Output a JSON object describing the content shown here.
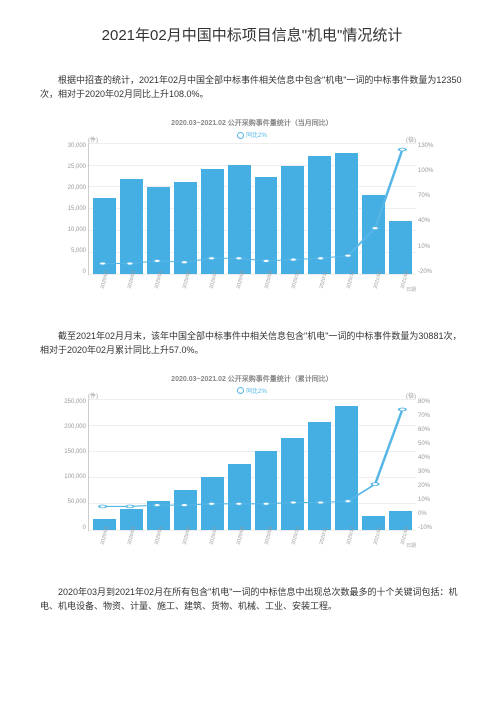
{
  "title": "2021年02月中国中标项目信息\"机电\"情况统计",
  "para1": "根据中招查的统计，2021年02月中国全部中标事件相关信息中包含\"机电\"一词的中标事件数量为12350次，相对于2020年02月同比上升108.0%。",
  "para2": "截至2021年02月月末，该年中国全部中标事件中相关信息包含\"机电\"一词的中标事件数量为30881次，相对于2020年02月累计同比上升57.0%。",
  "para3": "2020年03月到2021年02月在所有包含\"机电\"一词的中标信息中出现总次数最多的十个关键词包括：机电、机电设备、物资、计量、施工、建筑、货物、机械、工业、安装工程。",
  "chart1": {
    "title": "2020.03~2021.02 公开采购事件量统计（当月同比）",
    "legend": "同比2%",
    "y_left_unit": "(件)",
    "y_right_unit": "(倍)",
    "y_left": [
      "30,000",
      "25,000",
      "20,000",
      "15,000",
      "10,000",
      "5,000",
      "0"
    ],
    "y_right": [
      "130%",
      "100%",
      "70%",
      "40%",
      "10%",
      "-20%"
    ],
    "x": [
      "2020/03",
      "2020/04",
      "2020/05",
      "2020/06",
      "2020/07",
      "2020/08",
      "2020/09",
      "2020/10",
      "2020/11",
      "2020/12",
      "2021/01",
      "2021/02"
    ],
    "bars_pct": [
      58,
      72,
      66,
      70,
      80,
      83,
      74,
      82,
      90,
      92,
      60,
      40
    ],
    "line_pct": [
      8,
      8,
      10,
      9,
      12,
      12,
      10,
      11,
      12,
      14,
      35,
      95
    ],
    "bar_color": "#45aee2",
    "line_color": "#56b6e6",
    "grid_color": "#eeeeee",
    "bottom_label": "日期"
  },
  "chart2": {
    "title": "2020.03~2021.02 公开采购事件量统计（累计同比）",
    "legend": "同比2%",
    "y_left_unit": "(件)",
    "y_right_unit": "(倍)",
    "y_left": [
      "250,000",
      "200,000",
      "150,000",
      "100,000",
      "50,000",
      "0"
    ],
    "y_right": [
      "80%",
      "70%",
      "60%",
      "50%",
      "40%",
      "30%",
      "20%",
      "10%",
      "0%",
      "-10%"
    ],
    "x": [
      "2020/03",
      "2020/04",
      "2020/05",
      "2020/06",
      "2020/07",
      "2020/08",
      "2020/09",
      "2020/10",
      "2020/11",
      "2020/12",
      "2021/01",
      "2021/02"
    ],
    "bars_pct": [
      8,
      16,
      22,
      30,
      40,
      50,
      60,
      70,
      82,
      94,
      10,
      14
    ],
    "line_pct": [
      18,
      18,
      19,
      19,
      20,
      20,
      20,
      21,
      21,
      22,
      35,
      92
    ],
    "bar_color": "#45aee2",
    "line_color": "#56b6e6",
    "grid_color": "#eeeeee",
    "bottom_label": "日期"
  }
}
